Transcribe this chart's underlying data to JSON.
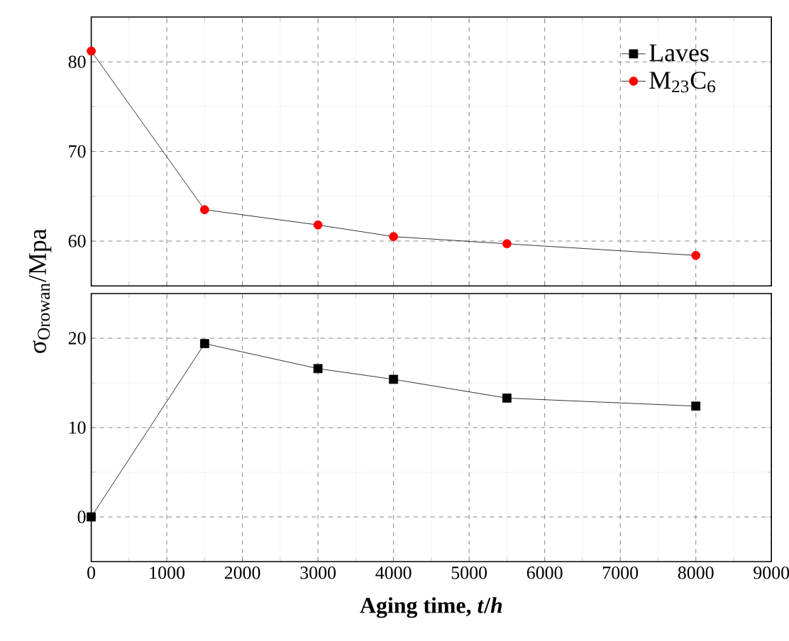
{
  "chart_data": [
    {
      "type": "line",
      "ylabel": "σ$_{Orowan}$/Mpa",
      "x": [
        0,
        1500,
        3000,
        4000,
        5500,
        8000
      ],
      "xlim": [
        0,
        9000
      ],
      "xticks": [
        0,
        1000,
        2000,
        3000,
        4000,
        5000,
        6000,
        7000,
        8000,
        9000
      ],
      "ylim": [
        55,
        85
      ],
      "yticks": [
        60,
        70,
        80
      ],
      "tick_labels": "y",
      "grid": true,
      "legend": "top right",
      "marker": "circle",
      "series": [
        {
          "name": "M$_{23}$C$_{6}$",
          "color": "#ff0000",
          "values": [
            81.2,
            63.5,
            61.8,
            60.5,
            59.7,
            58.4
          ]
        }
      ]
    },
    {
      "type": "line",
      "xlabel": "Aging time, *t*/*h*",
      "x": [
        0,
        1500,
        3000,
        4000,
        5500,
        8000
      ],
      "xlim": [
        0,
        9000
      ],
      "xticks": [
        0,
        1000,
        2000,
        3000,
        4000,
        5000,
        6000,
        7000,
        8000,
        9000
      ],
      "ylim": [
        -5,
        25
      ],
      "yticks": [
        0,
        10,
        20
      ],
      "grid": true,
      "legend": "top right",
      "marker": "square",
      "series": [
        {
          "name": "Laves",
          "color": "#000000",
          "values": [
            0,
            19.4,
            16.6,
            15.4,
            13.3,
            12.4
          ]
        }
      ]
    }
  ]
}
